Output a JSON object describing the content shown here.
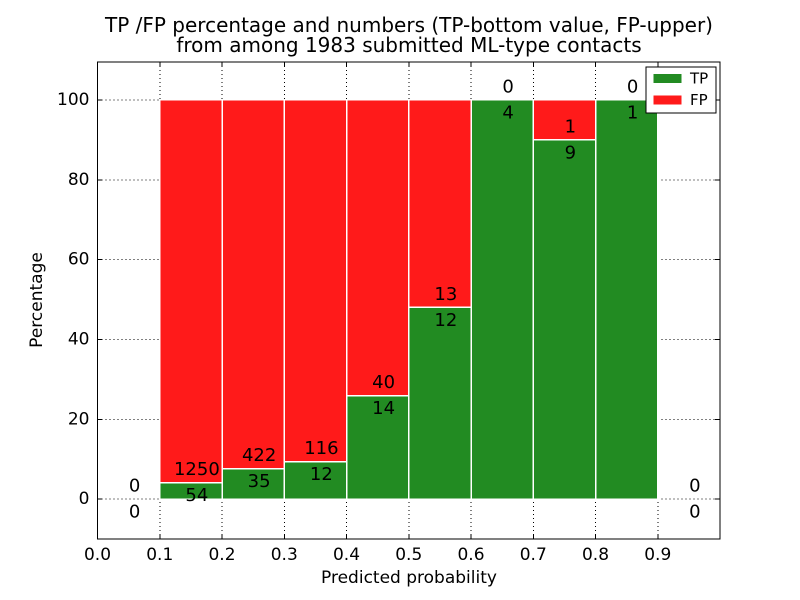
{
  "chart_data": {
    "type": "bar",
    "stacked": true,
    "normalized_to_percent": true,
    "title_line1": "TP /FP percentage and numbers (TP-bottom value, FP-upper)",
    "title_line2": "from among 1983 submitted ML-type contacts",
    "title": "TP /FP percentage and numbers (TP-bottom value, FP-upper)\nfrom among 1983 submitted ML-type contacts",
    "xlabel": "Predicted probability",
    "ylabel": "Percentage",
    "total_contacts": 1983,
    "xlim": [
      0.0,
      1.0
    ],
    "ylim": [
      -10,
      109.5
    ],
    "grid": true,
    "xticks": [
      {
        "v": 0.0,
        "label": "0.0"
      },
      {
        "v": 0.1,
        "label": "0.1"
      },
      {
        "v": 0.2,
        "label": "0.2"
      },
      {
        "v": 0.3,
        "label": "0.3"
      },
      {
        "v": 0.4,
        "label": "0.4"
      },
      {
        "v": 0.5,
        "label": "0.5"
      },
      {
        "v": 0.6,
        "label": "0.6"
      },
      {
        "v": 0.7,
        "label": "0.7"
      },
      {
        "v": 0.8,
        "label": "0.8"
      },
      {
        "v": 0.9,
        "label": "0.9"
      }
    ],
    "yticks": [
      {
        "v": 0,
        "label": "0"
      },
      {
        "v": 20,
        "label": "20"
      },
      {
        "v": 40,
        "label": "40"
      },
      {
        "v": 60,
        "label": "60"
      },
      {
        "v": 80,
        "label": "80"
      },
      {
        "v": 100,
        "label": "100"
      }
    ],
    "legend": {
      "position": "upper right",
      "entries": [
        {
          "label": "TP",
          "color": "#228b22"
        },
        {
          "label": "FP",
          "color": "#ff1a1a"
        }
      ]
    },
    "colors": {
      "tp": "#228b22",
      "fp": "#ff1a1a",
      "bar_edge": "#ffffff",
      "axis": "#000000",
      "grid": "#000000",
      "text": "#000000",
      "legend_bg": "#ffffff"
    },
    "bins": [
      {
        "range": [
          0.0,
          0.1
        ],
        "tp_count": 0,
        "fp_count": 0,
        "tp_pct": 0,
        "fp_pct": 0
      },
      {
        "range": [
          0.1,
          0.2
        ],
        "tp_count": 54,
        "fp_count": 1250,
        "tp_pct": 4.14,
        "fp_pct": 95.86
      },
      {
        "range": [
          0.2,
          0.3
        ],
        "tp_count": 35,
        "fp_count": 422,
        "tp_pct": 7.66,
        "fp_pct": 92.34
      },
      {
        "range": [
          0.3,
          0.4
        ],
        "tp_count": 12,
        "fp_count": 116,
        "tp_pct": 9.38,
        "fp_pct": 90.62
      },
      {
        "range": [
          0.4,
          0.5
        ],
        "tp_count": 14,
        "fp_count": 40,
        "tp_pct": 25.93,
        "fp_pct": 74.07
      },
      {
        "range": [
          0.5,
          0.6
        ],
        "tp_count": 12,
        "fp_count": 13,
        "tp_pct": 48.0,
        "fp_pct": 52.0
      },
      {
        "range": [
          0.6,
          0.7
        ],
        "tp_count": 4,
        "fp_count": 0,
        "tp_pct": 100.0,
        "fp_pct": 0.0
      },
      {
        "range": [
          0.7,
          0.8
        ],
        "tp_count": 9,
        "fp_count": 1,
        "tp_pct": 90.0,
        "fp_pct": 10.0
      },
      {
        "range": [
          0.8,
          0.9
        ],
        "tp_count": 1,
        "fp_count": 0,
        "tp_pct": 100.0,
        "fp_pct": 0.0
      },
      {
        "range": [
          0.9,
          1.0
        ],
        "tp_count": 0,
        "fp_count": 0,
        "tp_pct": 0,
        "fp_pct": 0
      }
    ]
  }
}
